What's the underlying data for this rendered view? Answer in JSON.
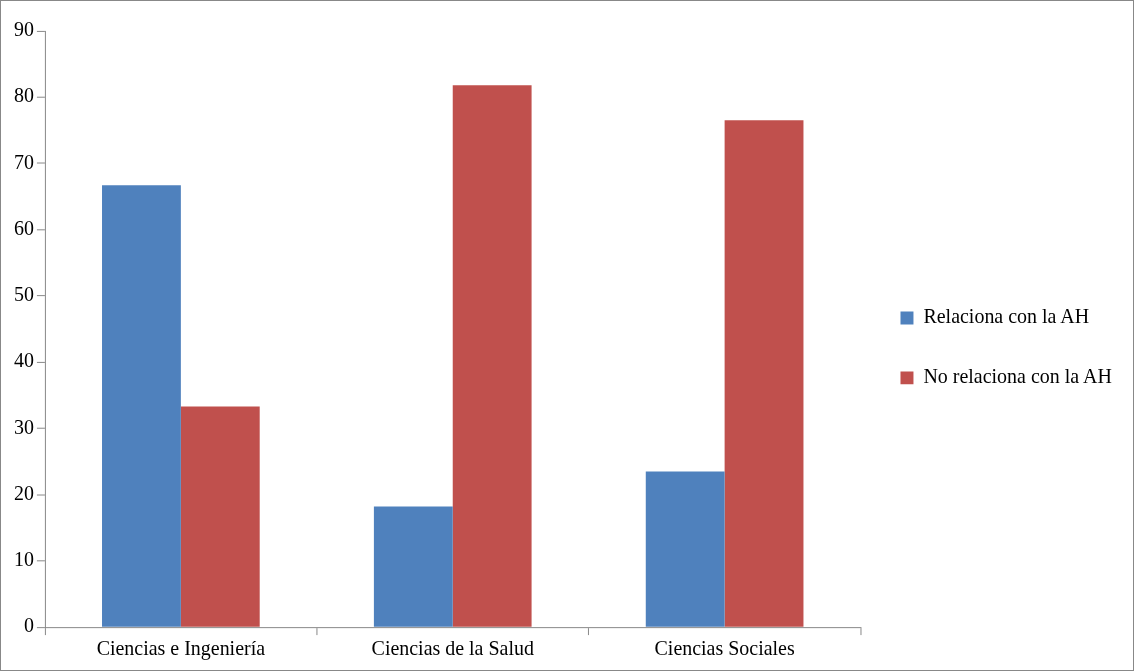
{
  "chart_data": {
    "type": "bar",
    "categories": [
      "Ciencias e Ingeniería",
      "Ciencias de la Salud",
      "Ciencias Sociales"
    ],
    "series": [
      {
        "name": "Relaciona con la AH",
        "color": "#4f81bd",
        "values": [
          66.7,
          18.2,
          23.5
        ]
      },
      {
        "name": "No relaciona con la AH",
        "color": "#c0504d",
        "values": [
          33.3,
          81.8,
          76.5
        ]
      }
    ],
    "ylim": [
      0,
      90
    ],
    "yticks": [
      0,
      10,
      20,
      30,
      40,
      50,
      60,
      70,
      80,
      90
    ],
    "grid": false,
    "legend": "right"
  }
}
